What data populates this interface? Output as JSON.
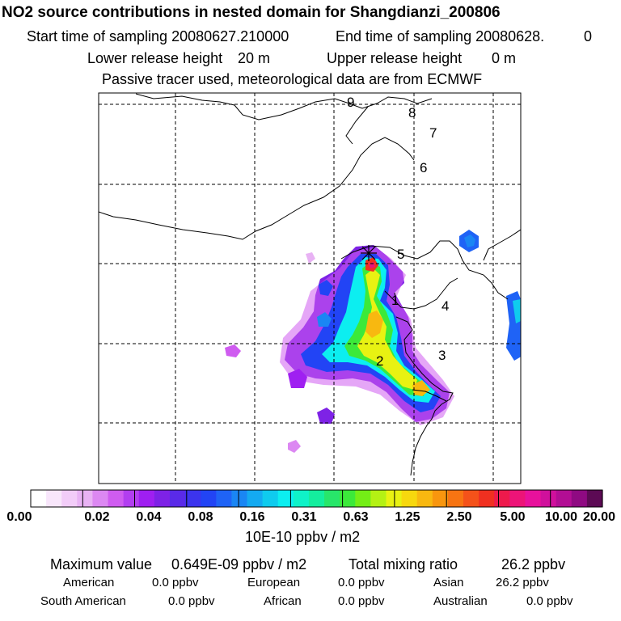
{
  "header": {
    "title": "NO2 source contributions in nested domain for Shangdianzi_200806",
    "start_label": "Start time of sampling 20080627.210000",
    "end_label": "End time of sampling 20080628.",
    "end_suffix": "0",
    "lower_label": "Lower release height",
    "lower_value": "20 m",
    "upper_label": "Upper release height",
    "upper_value": "0 m",
    "tracer_note": "Passive tracer used, meteorological data are from ECMWF"
  },
  "map": {
    "region_numbers": [
      "9",
      "8",
      "7",
      "6",
      "5",
      "4",
      "3",
      "2",
      "1"
    ],
    "receptor_marker": "asterisk-icon",
    "grid": "dashed"
  },
  "colorbar": {
    "labels": [
      "0.00",
      "0.02",
      "0.04",
      "0.08",
      "0.16",
      "0.31",
      "0.63",
      "1.25",
      "2.50",
      "5.00",
      "10.00",
      "20.00"
    ],
    "colors": [
      "#ffffff",
      "#f8e6fb",
      "#f2ccf8",
      "#e8b2f4",
      "#dc88f2",
      "#cf5cf0",
      "#b23ef0",
      "#9f1ff1",
      "#7e22e6",
      "#5a2ae8",
      "#3c34ee",
      "#2244f5",
      "#1f63f6",
      "#1a86f4",
      "#14aaf1",
      "#0fcbee",
      "#0ceef0",
      "#0ff2c8",
      "#14ee9e",
      "#28e66a",
      "#3ce93a",
      "#74ee16",
      "#b4f114",
      "#e8f212",
      "#f7d80e",
      "#f8b810",
      "#f8960e",
      "#f77412",
      "#f4521a",
      "#f03020",
      "#ee1a4c",
      "#ec1478",
      "#e8119c",
      "#d0109c",
      "#b20e94",
      "#8f0a82",
      "#5c0a54"
    ],
    "unit": "10E-10 ppbv / m2"
  },
  "summary": {
    "max_label": "Maximum value",
    "max_value": "0.649E-09 ppbv / m2",
    "total_label": "Total mixing ratio",
    "total_value": "26.2 ppbv",
    "regions": [
      {
        "name": "American",
        "value": "0.0 ppbv"
      },
      {
        "name": "European",
        "value": "0.0 ppbv"
      },
      {
        "name": "Asian",
        "value": "26.2 ppbv"
      },
      {
        "name": "South American",
        "value": "0.0 ppbv"
      },
      {
        "name": "African",
        "value": "0.0 ppbv"
      },
      {
        "name": "Australian",
        "value": "0.0 ppbv"
      }
    ]
  }
}
